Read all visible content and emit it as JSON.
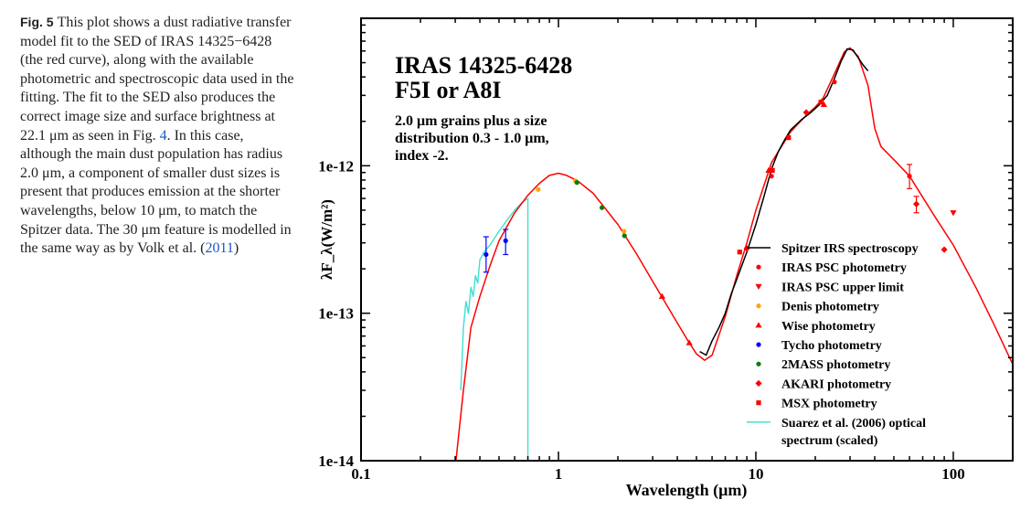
{
  "caption": {
    "label": "Fig. 5",
    "text_1": "This plot shows a dust radiative transfer model fit to the SED of IRAS 14325−6428 (the red curve), along with the available photometric and spectroscopic data used in the fitting. The fit to the SED also produces the correct image size and surface brightness at 22.1 μm as seen in Fig. ",
    "fig_ref": "4",
    "text_2": ". In this case, although the main dust population has radius 2.0 μm, a component of smaller dust sizes is present that produces emission at the shorter wavelengths, below 10 μm, to match the Spitzer data. The 30 μm feature is modelled in the same way as by Volk et al. (",
    "year_ref": "2011",
    "text_3": ")"
  },
  "chart_data": {
    "type": "scatter",
    "title_line1": "IRAS 14325-6428",
    "title_line2": "F5I or A8I",
    "annotation": [
      "2.0 μm grains plus a size",
      "distribution 0.3 - 1.0 μm,",
      "index -2."
    ],
    "xlabel": "Wavelength (μm)",
    "ylabel": "λF_λ(W/m²)",
    "x_scale": "log",
    "y_scale": "log",
    "xlim": [
      0.1,
      200
    ],
    "ylim": [
      1e-14,
      1e-11
    ],
    "x_ticks": [
      0.1,
      1,
      10,
      100
    ],
    "x_tick_labels": [
      "0.1",
      "1",
      "10",
      "100"
    ],
    "y_ticks": [
      1e-14,
      1e-13,
      1e-12
    ],
    "y_tick_labels": [
      "1e-14",
      "1e-13",
      "1e-12"
    ],
    "legend_position": "lower-right",
    "colors": {
      "model": "#ff0000",
      "spitzer": "#000000",
      "iras": "#ff0000",
      "denis": "#ffa500",
      "wise": "#ff0000",
      "tycho": "#0000ff",
      "twomass": "#008000",
      "akari": "#ff0000",
      "msx": "#ff0000",
      "suarez": "#40e0d0"
    },
    "legend": [
      {
        "label": "Spitzer IRS spectroscopy",
        "key": "spitzer",
        "marker": "line"
      },
      {
        "label": "IRAS PSC photometry",
        "key": "iras",
        "marker": "circle"
      },
      {
        "label": "IRAS PSC upper limit",
        "key": "iras",
        "marker": "triangle-down"
      },
      {
        "label": "Denis photometry",
        "key": "denis",
        "marker": "circle"
      },
      {
        "label": "Wise photometry",
        "key": "wise",
        "marker": "triangle-up"
      },
      {
        "label": "Tycho photometry",
        "key": "tycho",
        "marker": "circle"
      },
      {
        "label": "2MASS photometry",
        "key": "twomass",
        "marker": "circle"
      },
      {
        "label": "AKARI photometry",
        "key": "akari",
        "marker": "diamond"
      },
      {
        "label": "MSX photometry",
        "key": "msx",
        "marker": "square"
      },
      {
        "label": "Suarez et al. (2006) optical",
        "label2": "spectrum (scaled)",
        "key": "suarez",
        "marker": "line"
      }
    ],
    "model_curve": [
      [
        0.3,
        9e-15
      ],
      [
        0.33,
        3e-14
      ],
      [
        0.36,
        8e-14
      ],
      [
        0.4,
        1.3e-13
      ],
      [
        0.45,
        2.1e-13
      ],
      [
        0.5,
        3.1e-13
      ],
      [
        0.6,
        4.8e-13
      ],
      [
        0.7,
        6.3e-13
      ],
      [
        0.8,
        7.6e-13
      ],
      [
        0.9,
        8.6e-13
      ],
      [
        1.0,
        8.9e-13
      ],
      [
        1.1,
        8.6e-13
      ],
      [
        1.25,
        7.9e-13
      ],
      [
        1.5,
        6.5e-13
      ],
      [
        2.0,
        4e-13
      ],
      [
        2.5,
        2.5e-13
      ],
      [
        3.0,
        1.65e-13
      ],
      [
        4.0,
        8.6e-14
      ],
      [
        4.5,
        6.6e-14
      ],
      [
        5.0,
        5.3e-14
      ],
      [
        5.5,
        4.8e-14
      ],
      [
        6.0,
        5.2e-14
      ],
      [
        7.0,
        9.5e-14
      ],
      [
        8.0,
        1.8e-13
      ],
      [
        9.0,
        3e-13
      ],
      [
        10.0,
        5e-13
      ],
      [
        12.0,
        1.05e-12
      ],
      [
        15.0,
        1.7e-12
      ],
      [
        18.0,
        2.2e-12
      ],
      [
        20.0,
        2.5e-12
      ],
      [
        22.0,
        2.9e-12
      ],
      [
        25.0,
        4.2e-12
      ],
      [
        28.0,
        5.9e-12
      ],
      [
        30.0,
        6.3e-12
      ],
      [
        33.0,
        5.5e-12
      ],
      [
        37.0,
        3.5e-12
      ],
      [
        40.0,
        1.8e-12
      ],
      [
        43.0,
        1.35e-12
      ],
      [
        50.0,
        1.1e-12
      ],
      [
        60.0,
        8.5e-13
      ],
      [
        80.0,
        4.6e-13
      ],
      [
        100.0,
        2.9e-13
      ],
      [
        130.0,
        1.5e-13
      ],
      [
        160.0,
        8.5e-14
      ],
      [
        200.0,
        4.5e-14
      ]
    ],
    "spitzer_spectrum": [
      [
        5.2,
        5.5e-14
      ],
      [
        5.6,
        5.2e-14
      ],
      [
        6.0,
        6.5e-14
      ],
      [
        6.5,
        8e-14
      ],
      [
        7.0,
        1e-13
      ],
      [
        7.5,
        1.35e-13
      ],
      [
        8.0,
        1.7e-13
      ],
      [
        9.0,
        2.6e-13
      ],
      [
        10.0,
        4e-13
      ],
      [
        11.0,
        6.2e-13
      ],
      [
        12.0,
        9.5e-13
      ],
      [
        13.0,
        1.25e-12
      ],
      [
        14.0,
        1.5e-12
      ],
      [
        15.0,
        1.75e-12
      ],
      [
        17.0,
        2.05e-12
      ],
      [
        19.0,
        2.3e-12
      ],
      [
        21.0,
        2.6e-12
      ],
      [
        23.0,
        3e-12
      ],
      [
        25.0,
        3.9e-12
      ],
      [
        27.0,
        5.1e-12
      ],
      [
        29.0,
        6.2e-12
      ],
      [
        31.0,
        6.1e-12
      ],
      [
        33.0,
        5.4e-12
      ],
      [
        35.0,
        4.8e-12
      ],
      [
        37.0,
        4.4e-12
      ]
    ],
    "suarez_spectrum": [
      [
        0.32,
        3e-14
      ],
      [
        0.33,
        8e-14
      ],
      [
        0.34,
        1.2e-13
      ],
      [
        0.35,
        1e-13
      ],
      [
        0.36,
        1.5e-13
      ],
      [
        0.37,
        1.3e-13
      ],
      [
        0.38,
        1.8e-13
      ],
      [
        0.39,
        1.6e-13
      ],
      [
        0.4,
        2.3e-13
      ],
      [
        0.42,
        2.6e-13
      ],
      [
        0.45,
        2.9e-13
      ],
      [
        0.5,
        3.6e-13
      ],
      [
        0.55,
        4.3e-13
      ],
      [
        0.6,
        5e-13
      ],
      [
        0.65,
        5.6e-13
      ],
      [
        0.7,
        6e-13
      ]
    ],
    "iras_psc": [
      {
        "x": 12.0,
        "y": 8.5e-13
      },
      {
        "x": 25.0,
        "y": 3.7e-12
      },
      {
        "x": 60.0,
        "y": 8.5e-13,
        "err": [
          7e-13,
          1.02e-12
        ]
      }
    ],
    "iras_upper_limit": [
      {
        "x": 100.0,
        "y": 4.8e-13
      }
    ],
    "denis": [
      {
        "x": 0.79,
        "y": 6.9e-13
      },
      {
        "x": 1.22,
        "y": 7.9e-13
      },
      {
        "x": 2.15,
        "y": 3.6e-13
      }
    ],
    "wise": [
      {
        "x": 3.35,
        "y": 1.3e-13
      },
      {
        "x": 4.6,
        "y": 6.3e-14
      },
      {
        "x": 11.6,
        "y": 9.3e-13
      },
      {
        "x": 22.1,
        "y": 2.6e-12
      }
    ],
    "tycho": [
      {
        "x": 0.43,
        "y": 2.5e-13,
        "err": [
          1.9e-13,
          3.3e-13
        ]
      },
      {
        "x": 0.54,
        "y": 3.1e-13,
        "err": [
          2.5e-13,
          3.7e-13
        ]
      }
    ],
    "twomass": [
      {
        "x": 1.24,
        "y": 7.7e-13
      },
      {
        "x": 1.66,
        "y": 5.2e-13
      },
      {
        "x": 2.16,
        "y": 3.35e-13
      }
    ],
    "akari": [
      {
        "x": 9.0,
        "y": 2.75e-13
      },
      {
        "x": 18.0,
        "y": 2.3e-12
      },
      {
        "x": 65.0,
        "y": 5.5e-13,
        "err": [
          4.8e-13,
          6.2e-13
        ]
      },
      {
        "x": 90.0,
        "y": 2.7e-13
      }
    ],
    "msx": [
      {
        "x": 8.28,
        "y": 2.6e-13
      },
      {
        "x": 12.13,
        "y": 9.3e-13
      },
      {
        "x": 14.65,
        "y": 1.55e-12
      },
      {
        "x": 21.34,
        "y": 2.7e-12
      }
    ]
  }
}
